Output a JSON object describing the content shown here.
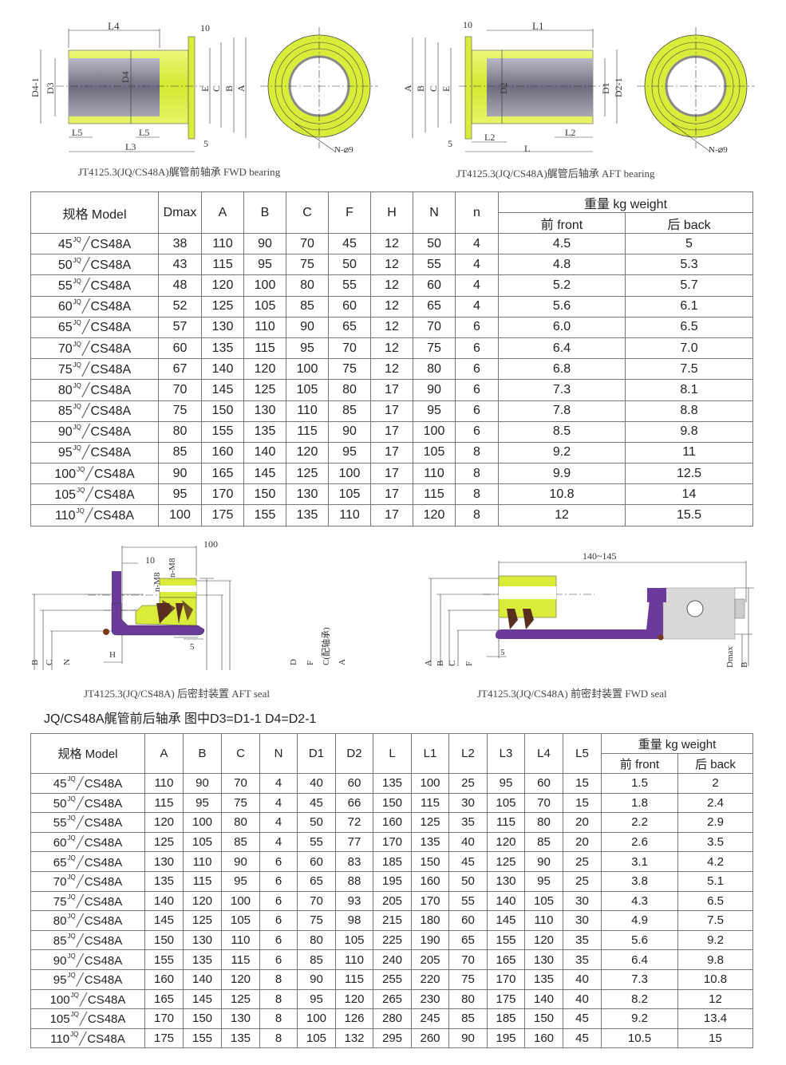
{
  "drawings": {
    "fwd_bearing": {
      "caption": "JT4125.3(JQ/CS48A)艉管前轴承 FWD bearing",
      "labels": {
        "L4": "L4",
        "ten": "10",
        "D4_1": "D4-1",
        "D3": "D3",
        "D4": "D4",
        "E": "E",
        "C": "C",
        "B": "B",
        "A": "A",
        "L5a": "L5",
        "L5b": "L5",
        "L3": "L3",
        "five": "5",
        "N": "N-⌀9"
      }
    },
    "aft_bearing": {
      "caption": "JT4125.3(JQ/CS48A)艉管后轴承 AFT bearing",
      "labels": {
        "L1": "L1",
        "ten": "10",
        "A": "A",
        "B": "B",
        "C": "C",
        "E": "E",
        "D2": "D2",
        "D1": "D1",
        "D2_1": "D2-1",
        "L2a": "L2",
        "L2b": "L2",
        "L": "L",
        "five": "5",
        "N": "N-⌀9"
      }
    },
    "aft_seal": {
      "caption": "JT4125.3(JQ/CS48A) 后密封装置 AFT seal",
      "labels": {
        "hundred": "100",
        "ten": "10",
        "nM8a": "n-M8",
        "nM8b": "n-M8",
        "B": "B",
        "C": "C",
        "N": "N",
        "H": "H",
        "five": "5",
        "D": "D",
        "F": "F",
        "Cb": "C(配轴承)",
        "A": "A"
      }
    },
    "fwd_seal": {
      "caption": "JT4125.3(JQ/CS48A) 前密封装置 FWD seal",
      "labels": {
        "span": "140~145",
        "A": "A",
        "B": "B",
        "C": "C",
        "F": "F",
        "five": "5",
        "Dmax": "Dmax",
        "B2": "B"
      }
    }
  },
  "colors": {
    "bronze_yellow": "#d9ec3a",
    "sleeve_gray": "#8a8a99",
    "rubber_purple": "#6a3b9a",
    "lip_brown": "#5a2e1e",
    "housing_silver": "#d8d8d8"
  },
  "seal_table": {
    "headers": {
      "model": "规格 Model",
      "dmax": "Dmax",
      "a": "A",
      "b": "B",
      "c": "C",
      "f": "F",
      "h": "H",
      "n_big": "N",
      "n_small": "n",
      "weight": "重量 kg weight",
      "front": "前  front",
      "back": "后 back"
    },
    "rows": [
      {
        "num": "45",
        "sup": "JQ",
        "suffix": "CS48A",
        "cells": [
          "38",
          "110",
          "90",
          "70",
          "45",
          "12",
          "50",
          "4",
          "4.5",
          "5"
        ]
      },
      {
        "num": "50",
        "sup": "JQ",
        "suffix": "CS48A",
        "cells": [
          "43",
          "115",
          "95",
          "75",
          "50",
          "12",
          "55",
          "4",
          "4.8",
          "5.3"
        ]
      },
      {
        "num": "55",
        "sup": "JQ",
        "suffix": "CS48A",
        "cells": [
          "48",
          "120",
          "100",
          "80",
          "55",
          "12",
          "60",
          "4",
          "5.2",
          "5.7"
        ]
      },
      {
        "num": "60",
        "sup": "JQ",
        "suffix": "CS48A",
        "cells": [
          "52",
          "125",
          "105",
          "85",
          "60",
          "12",
          "65",
          "4",
          "5.6",
          "6.1"
        ]
      },
      {
        "num": "65",
        "sup": "JQ",
        "suffix": "CS48A",
        "cells": [
          "57",
          "130",
          "110",
          "90",
          "65",
          "12",
          "70",
          "6",
          "6.0",
          "6.5"
        ]
      },
      {
        "num": "70",
        "sup": "JQ",
        "suffix": "CS48A",
        "cells": [
          "60",
          "135",
          "115",
          "95",
          "70",
          "12",
          "75",
          "6",
          "6.4",
          "7.0"
        ]
      },
      {
        "num": "75",
        "sup": "JQ",
        "suffix": "CS48A",
        "cells": [
          "67",
          "140",
          "120",
          "100",
          "75",
          "12",
          "80",
          "6",
          "6.8",
          "7.5"
        ]
      },
      {
        "num": "80",
        "sup": "JQ",
        "suffix": "CS48A",
        "cells": [
          "70",
          "145",
          "125",
          "105",
          "80",
          "17",
          "90",
          "6",
          "7.3",
          "8.1"
        ]
      },
      {
        "num": "85",
        "sup": "JQ",
        "suffix": "CS48A",
        "cells": [
          "75",
          "150",
          "130",
          "110",
          "85",
          "17",
          "95",
          "6",
          "7.8",
          "8.8"
        ]
      },
      {
        "num": "90",
        "sup": "JQ",
        "suffix": "CS48A",
        "cells": [
          "80",
          "155",
          "135",
          "115",
          "90",
          "17",
          "100",
          "6",
          "8.5",
          "9.8"
        ]
      },
      {
        "num": "95",
        "sup": "JQ",
        "suffix": "CS48A",
        "cells": [
          "85",
          "160",
          "140",
          "120",
          "95",
          "17",
          "105",
          "8",
          "9.2",
          "11"
        ]
      },
      {
        "num": "100",
        "sup": "JQ",
        "suffix": "CS48A",
        "cells": [
          "90",
          "165",
          "145",
          "125",
          "100",
          "17",
          "110",
          "8",
          "9.9",
          "12.5"
        ]
      },
      {
        "num": "105",
        "sup": "JQ",
        "suffix": "CS48A",
        "cells": [
          "95",
          "170",
          "150",
          "130",
          "105",
          "17",
          "115",
          "8",
          "10.8",
          "14"
        ]
      },
      {
        "num": "110",
        "sup": "JQ",
        "suffix": "CS48A",
        "cells": [
          "100",
          "175",
          "155",
          "135",
          "110",
          "17",
          "120",
          "8",
          "12",
          "15.5"
        ]
      }
    ]
  },
  "note": "JQ/CS48A艉管前后轴承 图中D3=D1-1  D4=D2-1",
  "bearing_table": {
    "headers": {
      "model": "规格 Model",
      "a": "A",
      "b": "B",
      "c": "C",
      "n": "N",
      "d1": "D1",
      "d2": "D2",
      "l": "L",
      "l1": "L1",
      "l2": "L2",
      "l3": "L3",
      "l4": "L4",
      "l5": "L5",
      "weight": "重量 kg weight",
      "front": "前  front",
      "back": "后 back"
    },
    "rows": [
      {
        "num": "45",
        "sup": "JQ",
        "suffix": "CS48A",
        "cells": [
          "110",
          "90",
          "70",
          "4",
          "40",
          "60",
          "135",
          "100",
          "25",
          "95",
          "60",
          "15",
          "1.5",
          "2"
        ]
      },
      {
        "num": "50",
        "sup": "JQ",
        "suffix": "CS48A",
        "cells": [
          "115",
          "95",
          "75",
          "4",
          "45",
          "66",
          "150",
          "115",
          "30",
          "105",
          "70",
          "15",
          "1.8",
          "2.4"
        ]
      },
      {
        "num": "55",
        "sup": "JQ",
        "suffix": "CS48A",
        "cells": [
          "120",
          "100",
          "80",
          "4",
          "50",
          "72",
          "160",
          "125",
          "35",
          "115",
          "80",
          "20",
          "2.2",
          "2.9"
        ]
      },
      {
        "num": "60",
        "sup": "JQ",
        "suffix": "CS48A",
        "cells": [
          "125",
          "105",
          "85",
          "4",
          "55",
          "77",
          "170",
          "135",
          "40",
          "120",
          "85",
          "20",
          "2.6",
          "3.5"
        ]
      },
      {
        "num": "65",
        "sup": "JQ",
        "suffix": "CS48A",
        "cells": [
          "130",
          "110",
          "90",
          "6",
          "60",
          "83",
          "185",
          "150",
          "45",
          "125",
          "90",
          "25",
          "3.1",
          "4.2"
        ]
      },
      {
        "num": "70",
        "sup": "JQ",
        "suffix": "CS48A",
        "cells": [
          "135",
          "115",
          "95",
          "6",
          "65",
          "88",
          "195",
          "160",
          "50",
          "130",
          "95",
          "25",
          "3.8",
          "5.1"
        ]
      },
      {
        "num": "75",
        "sup": "JQ",
        "suffix": "CS48A",
        "cells": [
          "140",
          "120",
          "100",
          "6",
          "70",
          "93",
          "205",
          "170",
          "55",
          "140",
          "105",
          "30",
          "4.3",
          "6.5"
        ]
      },
      {
        "num": "80",
        "sup": "JQ",
        "suffix": "CS48A",
        "cells": [
          "145",
          "125",
          "105",
          "6",
          "75",
          "98",
          "215",
          "180",
          "60",
          "145",
          "110",
          "30",
          "4.9",
          "7.5"
        ]
      },
      {
        "num": "85",
        "sup": "JQ",
        "suffix": "CS48A",
        "cells": [
          "150",
          "130",
          "110",
          "6",
          "80",
          "105",
          "225",
          "190",
          "65",
          "155",
          "120",
          "35",
          "5.6",
          "9.2"
        ]
      },
      {
        "num": "90",
        "sup": "JQ",
        "suffix": "CS48A",
        "cells": [
          "155",
          "135",
          "115",
          "6",
          "85",
          "110",
          "240",
          "205",
          "70",
          "165",
          "130",
          "35",
          "6.4",
          "9.8"
        ]
      },
      {
        "num": "95",
        "sup": "JQ",
        "suffix": "CS48A",
        "cells": [
          "160",
          "140",
          "120",
          "8",
          "90",
          "115",
          "255",
          "220",
          "75",
          "170",
          "135",
          "40",
          "7.3",
          "10.8"
        ]
      },
      {
        "num": "100",
        "sup": "JQ",
        "suffix": "CS48A",
        "cells": [
          "165",
          "145",
          "125",
          "8",
          "95",
          "120",
          "265",
          "230",
          "80",
          "175",
          "140",
          "40",
          "8.2",
          "12"
        ]
      },
      {
        "num": "105",
        "sup": "JQ",
        "suffix": "CS48A",
        "cells": [
          "170",
          "150",
          "130",
          "8",
          "100",
          "126",
          "280",
          "245",
          "85",
          "185",
          "150",
          "45",
          "9.2",
          "13.4"
        ]
      },
      {
        "num": "110",
        "sup": "JQ",
        "suffix": "CS48A",
        "cells": [
          "175",
          "155",
          "135",
          "8",
          "105",
          "132",
          "295",
          "260",
          "90",
          "195",
          "160",
          "45",
          "10.5",
          "15"
        ]
      }
    ]
  }
}
